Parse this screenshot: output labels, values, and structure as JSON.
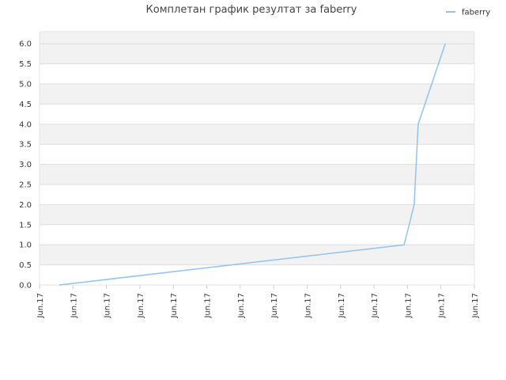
{
  "chart_data": {
    "type": "line",
    "title": "Комплетан график резултат за faberry",
    "x": [
      0.59,
      10.9,
      11.2,
      11.32,
      12.13
    ],
    "series": [
      {
        "name": "faberry",
        "color": "#90c3ee",
        "values": [
          0,
          1,
          2,
          4,
          6
        ]
      }
    ],
    "xlim": [
      0,
      13
    ],
    "xticks": [
      {
        "value": 0,
        "label": "Jun.17"
      },
      {
        "value": 1,
        "label": "Jun.17"
      },
      {
        "value": 2,
        "label": "Jun.17"
      },
      {
        "value": 3,
        "label": "Jun.17"
      },
      {
        "value": 4,
        "label": "Jun.17"
      },
      {
        "value": 5,
        "label": "Jun.17"
      },
      {
        "value": 6,
        "label": "Jun.17"
      },
      {
        "value": 7,
        "label": "Jun.17"
      },
      {
        "value": 8,
        "label": "Jun.17"
      },
      {
        "value": 9,
        "label": "Jun.17"
      },
      {
        "value": 10,
        "label": "Jun.17"
      },
      {
        "value": 11,
        "label": "Jun.17"
      },
      {
        "value": 12,
        "label": "Jun.17"
      },
      {
        "value": 13,
        "label": "Jun.17"
      }
    ],
    "ylim": [
      0,
      6.3
    ],
    "yticks": [
      {
        "value": 0,
        "label": "0.0"
      },
      0.5,
      {
        "value": 1,
        "label": "1.0"
      },
      1.5,
      {
        "value": 2,
        "label": "2.0"
      },
      2.5,
      {
        "value": 3,
        "label": "3.0"
      },
      3.5,
      {
        "value": 4,
        "label": "4.0"
      },
      4.5,
      {
        "value": 5,
        "label": "5.0"
      },
      5.5,
      {
        "value": 6,
        "label": "6.0"
      }
    ],
    "grid": true,
    "legend": "top-right"
  }
}
